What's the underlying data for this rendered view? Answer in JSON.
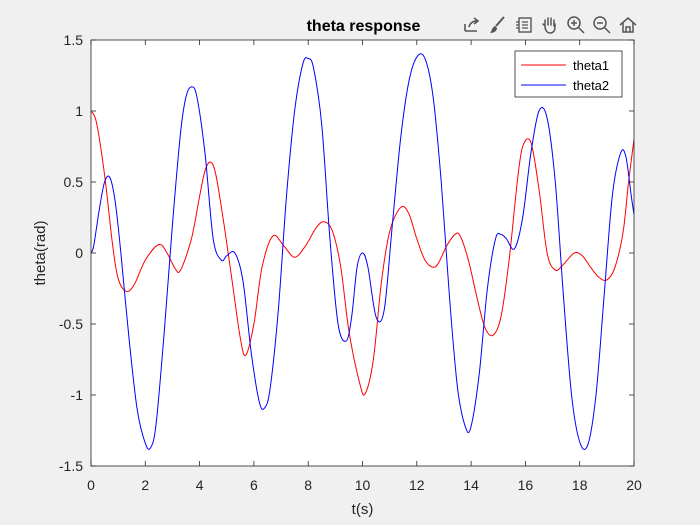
{
  "toolbar": {
    "icons": [
      "export-icon",
      "brush-icon",
      "legend-toggle-icon",
      "pan-icon",
      "zoom-in-icon",
      "zoom-out-icon",
      "home-icon"
    ]
  },
  "colors": {
    "figure_bg": "#f0f0f0",
    "axes_bg": "#ffffff",
    "theta1": "#ff0000",
    "theta2": "#0000ff"
  },
  "chart_data": {
    "type": "line",
    "title": "theta response",
    "xlabel": "t(s)",
    "ylabel": "theta(rad)",
    "xlim": [
      0,
      20
    ],
    "ylim": [
      -1.5,
      1.5
    ],
    "xticks": [
      0,
      2,
      4,
      6,
      8,
      10,
      12,
      14,
      16,
      18,
      20
    ],
    "yticks": [
      -1.5,
      -1,
      -0.5,
      0,
      0.5,
      1,
      1.5
    ],
    "xtick_labels": [
      "0",
      "2",
      "4",
      "6",
      "8",
      "10",
      "12",
      "14",
      "16",
      "18",
      "20"
    ],
    "ytick_labels": [
      "-1.5",
      "-1",
      "-0.5",
      "0",
      "0.5",
      "1",
      "1.5"
    ],
    "grid": false,
    "legend_location": "top-right",
    "series": [
      {
        "name": "theta1",
        "color": "#ff0000",
        "x": [
          0,
          0.2,
          0.5,
          0.8,
          1.0,
          1.3,
          1.6,
          2.0,
          2.5,
          2.8,
          3.1,
          3.3,
          3.7,
          4.0,
          4.2,
          4.4,
          4.6,
          4.9,
          5.2,
          5.5,
          5.7,
          6.0,
          6.3,
          6.7,
          7.1,
          7.5,
          7.9,
          8.3,
          8.6,
          8.9,
          9.2,
          9.5,
          9.9,
          10.1,
          10.4,
          10.7,
          11.0,
          11.4,
          11.7,
          12.0,
          12.3,
          12.6,
          12.8,
          13.1,
          13.4,
          13.6,
          13.9,
          14.2,
          14.5,
          14.8,
          15.1,
          15.4,
          15.7,
          15.9,
          16.2,
          16.5,
          16.8,
          17.1,
          17.4,
          17.8,
          18.1,
          18.4,
          18.7,
          19.0,
          19.3,
          19.6,
          19.8,
          20.0
        ],
        "y": [
          1.0,
          0.92,
          0.55,
          0.05,
          -0.18,
          -0.27,
          -0.22,
          -0.05,
          0.06,
          0.0,
          -0.11,
          -0.12,
          0.1,
          0.4,
          0.58,
          0.64,
          0.55,
          0.2,
          -0.2,
          -0.6,
          -0.72,
          -0.5,
          -0.1,
          0.12,
          0.05,
          -0.03,
          0.05,
          0.18,
          0.22,
          0.15,
          -0.1,
          -0.55,
          -0.92,
          -0.99,
          -0.75,
          -0.2,
          0.15,
          0.32,
          0.28,
          0.1,
          -0.05,
          -0.1,
          -0.07,
          0.05,
          0.13,
          0.12,
          -0.05,
          -0.3,
          -0.52,
          -0.58,
          -0.45,
          -0.05,
          0.5,
          0.75,
          0.78,
          0.45,
          0.0,
          -0.12,
          -0.08,
          0.0,
          -0.02,
          -0.1,
          -0.17,
          -0.19,
          -0.1,
          0.15,
          0.5,
          0.8
        ]
      },
      {
        "name": "theta2",
        "color": "#0000ff",
        "x": [
          0,
          0.1,
          0.3,
          0.5,
          0.7,
          0.9,
          1.1,
          1.4,
          1.7,
          2.0,
          2.2,
          2.4,
          2.7,
          3.0,
          3.3,
          3.5,
          3.7,
          3.9,
          4.2,
          4.5,
          4.8,
          5.0,
          5.3,
          5.6,
          5.9,
          6.2,
          6.4,
          6.6,
          6.9,
          7.2,
          7.5,
          7.8,
          8.0,
          8.2,
          8.5,
          8.8,
          9.1,
          9.4,
          9.6,
          9.8,
          10.0,
          10.2,
          10.5,
          10.8,
          11.1,
          11.4,
          11.7,
          12.0,
          12.3,
          12.6,
          12.9,
          13.2,
          13.5,
          13.8,
          14.0,
          14.3,
          14.6,
          14.9,
          15.1,
          15.3,
          15.6,
          15.9,
          16.2,
          16.5,
          16.8,
          17.1,
          17.4,
          17.7,
          18.0,
          18.3,
          18.6,
          18.9,
          19.2,
          19.5,
          19.7,
          19.9,
          20.0
        ],
        "y": [
          0.0,
          0.05,
          0.3,
          0.5,
          0.53,
          0.35,
          0.0,
          -0.6,
          -1.1,
          -1.34,
          -1.37,
          -1.2,
          -0.55,
          0.2,
          0.85,
          1.1,
          1.17,
          1.1,
          0.7,
          0.1,
          -0.05,
          -0.02,
          0.0,
          -0.2,
          -0.7,
          -1.05,
          -1.09,
          -0.95,
          -0.4,
          0.4,
          1.0,
          1.33,
          1.37,
          1.3,
          0.9,
          0.1,
          -0.5,
          -0.62,
          -0.45,
          -0.1,
          0.0,
          -0.1,
          -0.45,
          -0.4,
          0.2,
          0.8,
          1.2,
          1.38,
          1.37,
          1.1,
          0.5,
          -0.3,
          -0.95,
          -1.23,
          -1.22,
          -0.85,
          -0.25,
          0.1,
          0.13,
          0.1,
          0.03,
          0.25,
          0.7,
          1.0,
          0.95,
          0.5,
          -0.3,
          -1.0,
          -1.33,
          -1.35,
          -1.0,
          -0.3,
          0.4,
          0.7,
          0.68,
          0.4,
          0.27
        ]
      }
    ]
  }
}
